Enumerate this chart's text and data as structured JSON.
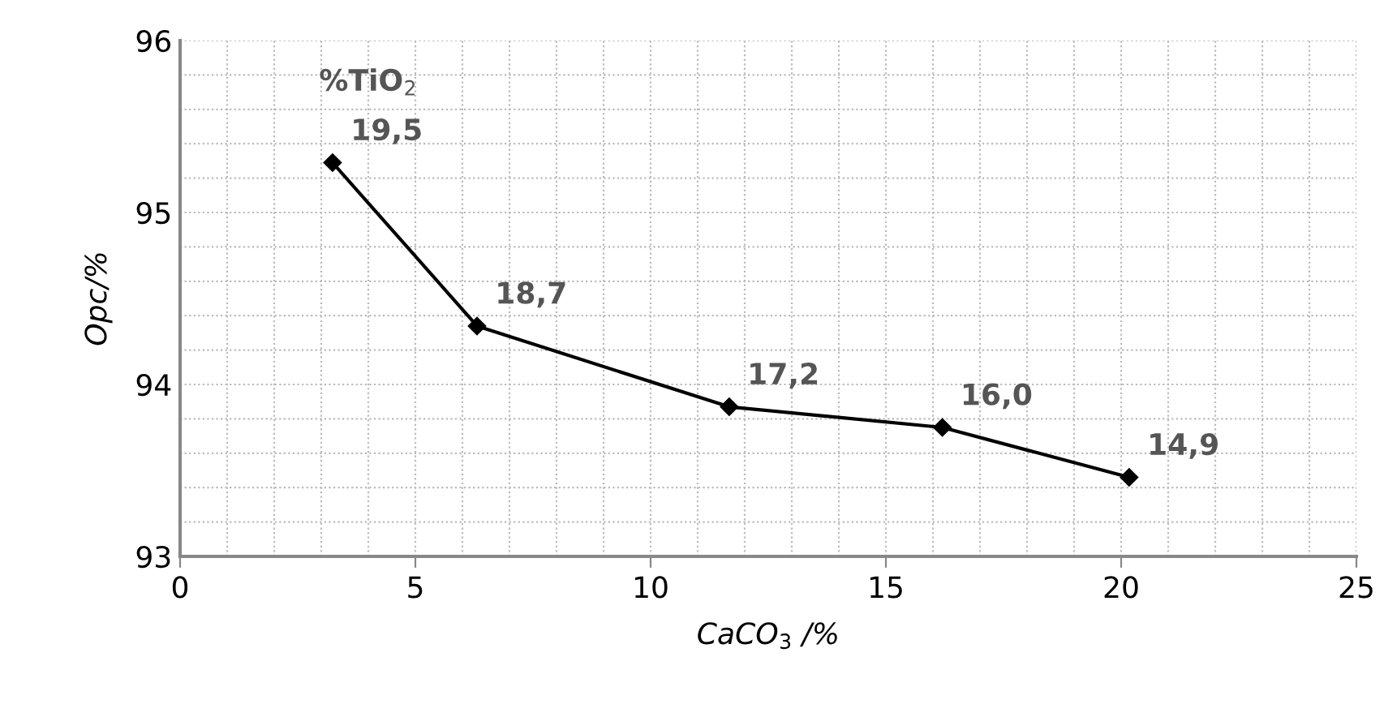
{
  "chart_data": {
    "type": "line",
    "xlabel": "CaCO$_{3}$ /%",
    "ylabel": "Opc/%",
    "x": [
      3.24,
      6.31,
      11.67,
      16.2,
      20.17
    ],
    "values": [
      95.29,
      94.34,
      93.87,
      93.75,
      93.46
    ],
    "color": "#000000",
    "marker": "diamond",
    "line_style": "solid",
    "xlim": [
      0,
      25
    ],
    "xticks": [
      0,
      5,
      10,
      15,
      20,
      25
    ],
    "ylim": [
      93,
      96
    ],
    "yticks": [
      93,
      94,
      95,
      96
    ],
    "grid": true,
    "annotations": [
      "%TiO$_{2}$",
      {
        "text": "19,5",
        "x": 3.24,
        "y": 95.29
      },
      {
        "text": "18,7",
        "x": 6.31,
        "y": 94.34
      },
      {
        "text": "17,2",
        "x": 11.67,
        "y": 93.87
      },
      {
        "text": "16,0",
        "x": 16.2,
        "y": 93.75
      },
      {
        "text": "14,9",
        "x": 20.17,
        "y": 93.46
      }
    ]
  }
}
